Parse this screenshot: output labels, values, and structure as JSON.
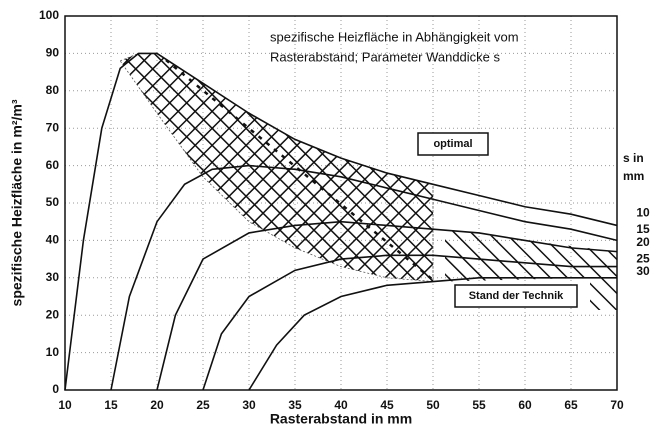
{
  "chart_data": {
    "type": "line",
    "xlabel": "Rasterabstand in mm",
    "ylabel": "spezifische Heizfläche in m²/m³",
    "annotation_lines": [
      "spezifische Heizfläche in Abhängigkeit vom",
      "Rasterabstand; Parameter Wanddicke s"
    ],
    "optimal_label": "optimal",
    "stand_label": "Stand der Technik",
    "legend_title_lines": [
      "s in",
      "mm"
    ],
    "xlim": [
      10,
      70
    ],
    "xticks": [
      10,
      15,
      20,
      25,
      30,
      35,
      40,
      45,
      50,
      55,
      60,
      65,
      70
    ],
    "ylim": [
      0,
      100
    ],
    "yticks": [
      0,
      10,
      20,
      30,
      40,
      50,
      60,
      70,
      80,
      90,
      100
    ],
    "grid": true,
    "series": [
      {
        "name": "10",
        "color": "#111111",
        "x": [
          10,
          12,
          14,
          16,
          18,
          20,
          25,
          30,
          35,
          40,
          45,
          50,
          55,
          60,
          65,
          70
        ],
        "values": [
          0,
          40,
          70,
          86,
          90,
          90,
          82,
          74,
          67,
          62,
          58,
          55,
          52,
          49,
          47,
          44
        ]
      },
      {
        "name": "15",
        "color": "#111111",
        "x": [
          15,
          17,
          20,
          23,
          26,
          30,
          35,
          40,
          45,
          50,
          55,
          60,
          65,
          70
        ],
        "values": [
          0,
          25,
          45,
          55,
          59,
          60,
          59,
          57,
          54,
          51,
          48,
          45,
          43,
          40
        ]
      },
      {
        "name": "20",
        "color": "#111111",
        "x": [
          20,
          22,
          25,
          30,
          35,
          40,
          45,
          50,
          55,
          60,
          65,
          70
        ],
        "values": [
          0,
          20,
          35,
          42,
          44,
          45,
          44,
          43,
          42,
          40,
          38,
          37
        ]
      },
      {
        "name": "25",
        "color": "#111111",
        "x": [
          25,
          27,
          30,
          35,
          40,
          45,
          50,
          55,
          60,
          65,
          70
        ],
        "values": [
          0,
          15,
          25,
          32,
          35,
          36,
          36,
          35,
          34,
          33,
          33
        ]
      },
      {
        "name": "30",
        "color": "#111111",
        "x": [
          30,
          33,
          36,
          40,
          45,
          50,
          55,
          60,
          65,
          70
        ],
        "values": [
          0,
          12,
          20,
          25,
          28,
          29,
          30,
          30,
          30,
          30
        ]
      }
    ]
  }
}
